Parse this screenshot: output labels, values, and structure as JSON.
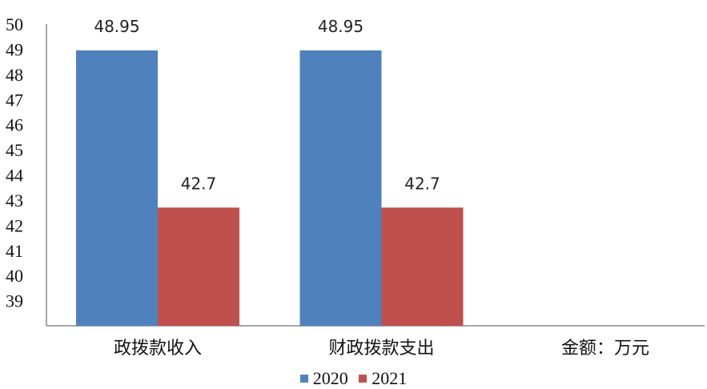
{
  "chart_data": {
    "type": "bar",
    "categories": [
      "政拨款收入",
      "财政拨款支出",
      "金额：万元"
    ],
    "series": [
      {
        "name": "2020",
        "color": "#4F81BD",
        "values": [
          48.95,
          48.95,
          null
        ],
        "data_labels": [
          "48.95",
          "48.95",
          null
        ]
      },
      {
        "name": "2021",
        "color": "#C0504D",
        "values": [
          42.7,
          42.7,
          null
        ],
        "data_labels": [
          "42.7",
          "42.7",
          null
        ]
      }
    ],
    "y_ticks": [
      "39",
      "40",
      "41",
      "42",
      "43",
      "44",
      "45",
      "46",
      "47",
      "48",
      "49",
      "50"
    ],
    "ylim": [
      38,
      50
    ],
    "legend_position": "bottom",
    "grid": false
  }
}
